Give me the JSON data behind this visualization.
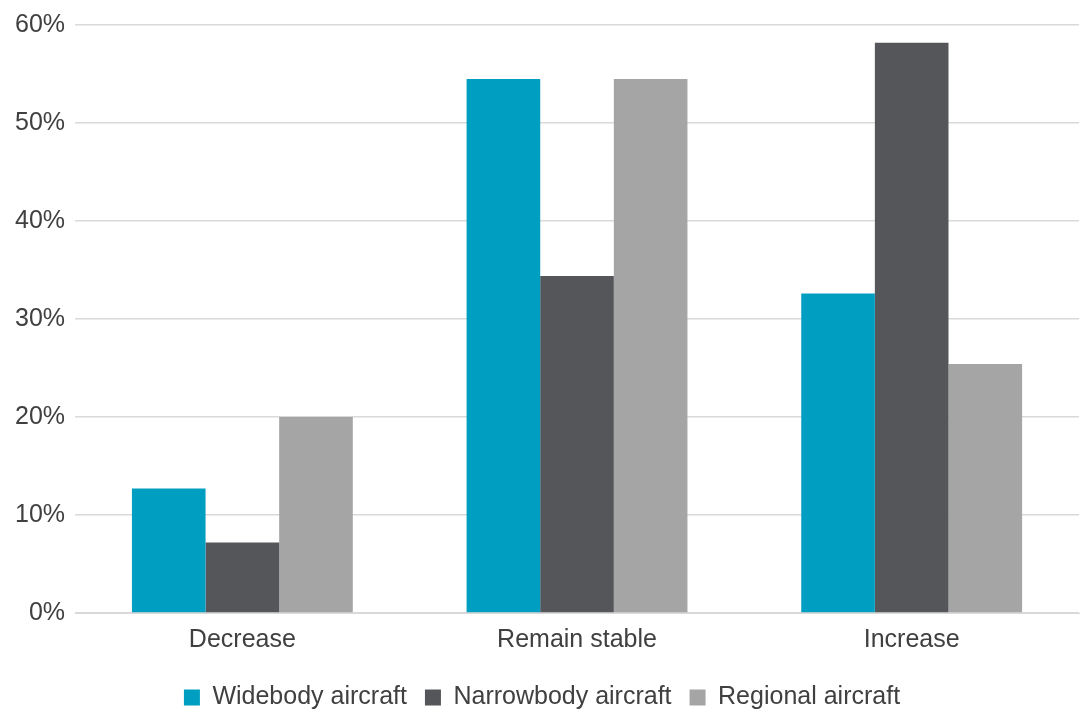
{
  "chart_data": {
    "type": "bar",
    "categories": [
      "Decrease",
      "Remain stable",
      "Increase"
    ],
    "series": [
      {
        "name": "Widebody aircraft",
        "color": "#009fc2",
        "values": [
          12.7,
          54.5,
          32.6
        ]
      },
      {
        "name": "Narrowbody aircraft",
        "color": "#54565a",
        "values": [
          7.2,
          34.4,
          58.2
        ]
      },
      {
        "name": "Regional aircraft",
        "color": "#a5a5a5",
        "values": [
          20.0,
          54.5,
          25.4
        ]
      }
    ],
    "ylim": [
      0,
      60
    ],
    "yticks": [
      {
        "value": 0,
        "label": "0%"
      },
      {
        "value": 10,
        "label": "10%"
      },
      {
        "value": 20,
        "label": "20%"
      },
      {
        "value": 30,
        "label": "30%"
      },
      {
        "value": 40,
        "label": "40%"
      },
      {
        "value": 50,
        "label": "50%"
      },
      {
        "value": 60,
        "label": "60%"
      }
    ],
    "grid": "y",
    "legend": "bottom"
  }
}
